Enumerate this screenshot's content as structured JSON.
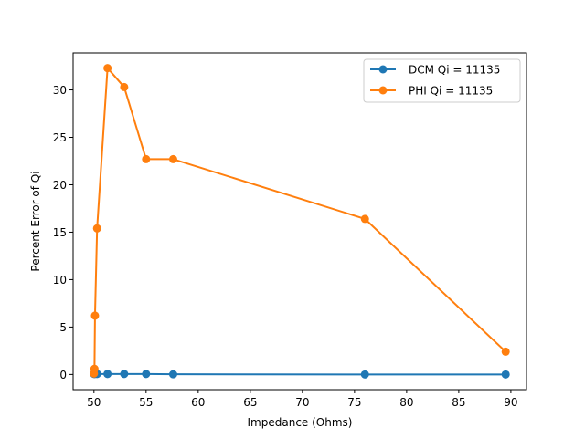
{
  "chart_data": {
    "type": "line",
    "title": "",
    "xlabel": "Impedance (Ohms)",
    "ylabel": "Percent Error of Qi",
    "xlim": [
      48.0,
      91.5
    ],
    "ylim": [
      -1.6,
      33.9
    ],
    "xticks": [
      50,
      55,
      60,
      65,
      70,
      75,
      80,
      85,
      90
    ],
    "yticks": [
      0,
      5,
      10,
      15,
      20,
      25,
      30
    ],
    "grid": false,
    "legend_position": "top-right",
    "series": [
      {
        "name": "DCM Qi = 11135",
        "color": "#1f77b4",
        "marker": "circle",
        "points": [
          [
            50.0,
            0.05
          ],
          [
            50.1,
            0.05
          ],
          [
            50.3,
            0.05
          ],
          [
            51.3,
            0.05
          ],
          [
            52.9,
            0.05
          ],
          [
            55.0,
            0.05
          ],
          [
            57.6,
            0.02
          ],
          [
            76.0,
            0.0
          ],
          [
            89.5,
            0.0
          ]
        ]
      },
      {
        "name": "PHI Qi = 11135",
        "color": "#ff7f0e",
        "marker": "circle",
        "points": [
          [
            50.0,
            0.1
          ],
          [
            50.05,
            0.6
          ],
          [
            50.1,
            6.2
          ],
          [
            50.3,
            15.4
          ],
          [
            51.3,
            32.3
          ],
          [
            52.9,
            30.3
          ],
          [
            55.0,
            22.7
          ],
          [
            57.6,
            22.7
          ],
          [
            76.0,
            16.4
          ],
          [
            89.5,
            2.4
          ]
        ]
      }
    ]
  }
}
